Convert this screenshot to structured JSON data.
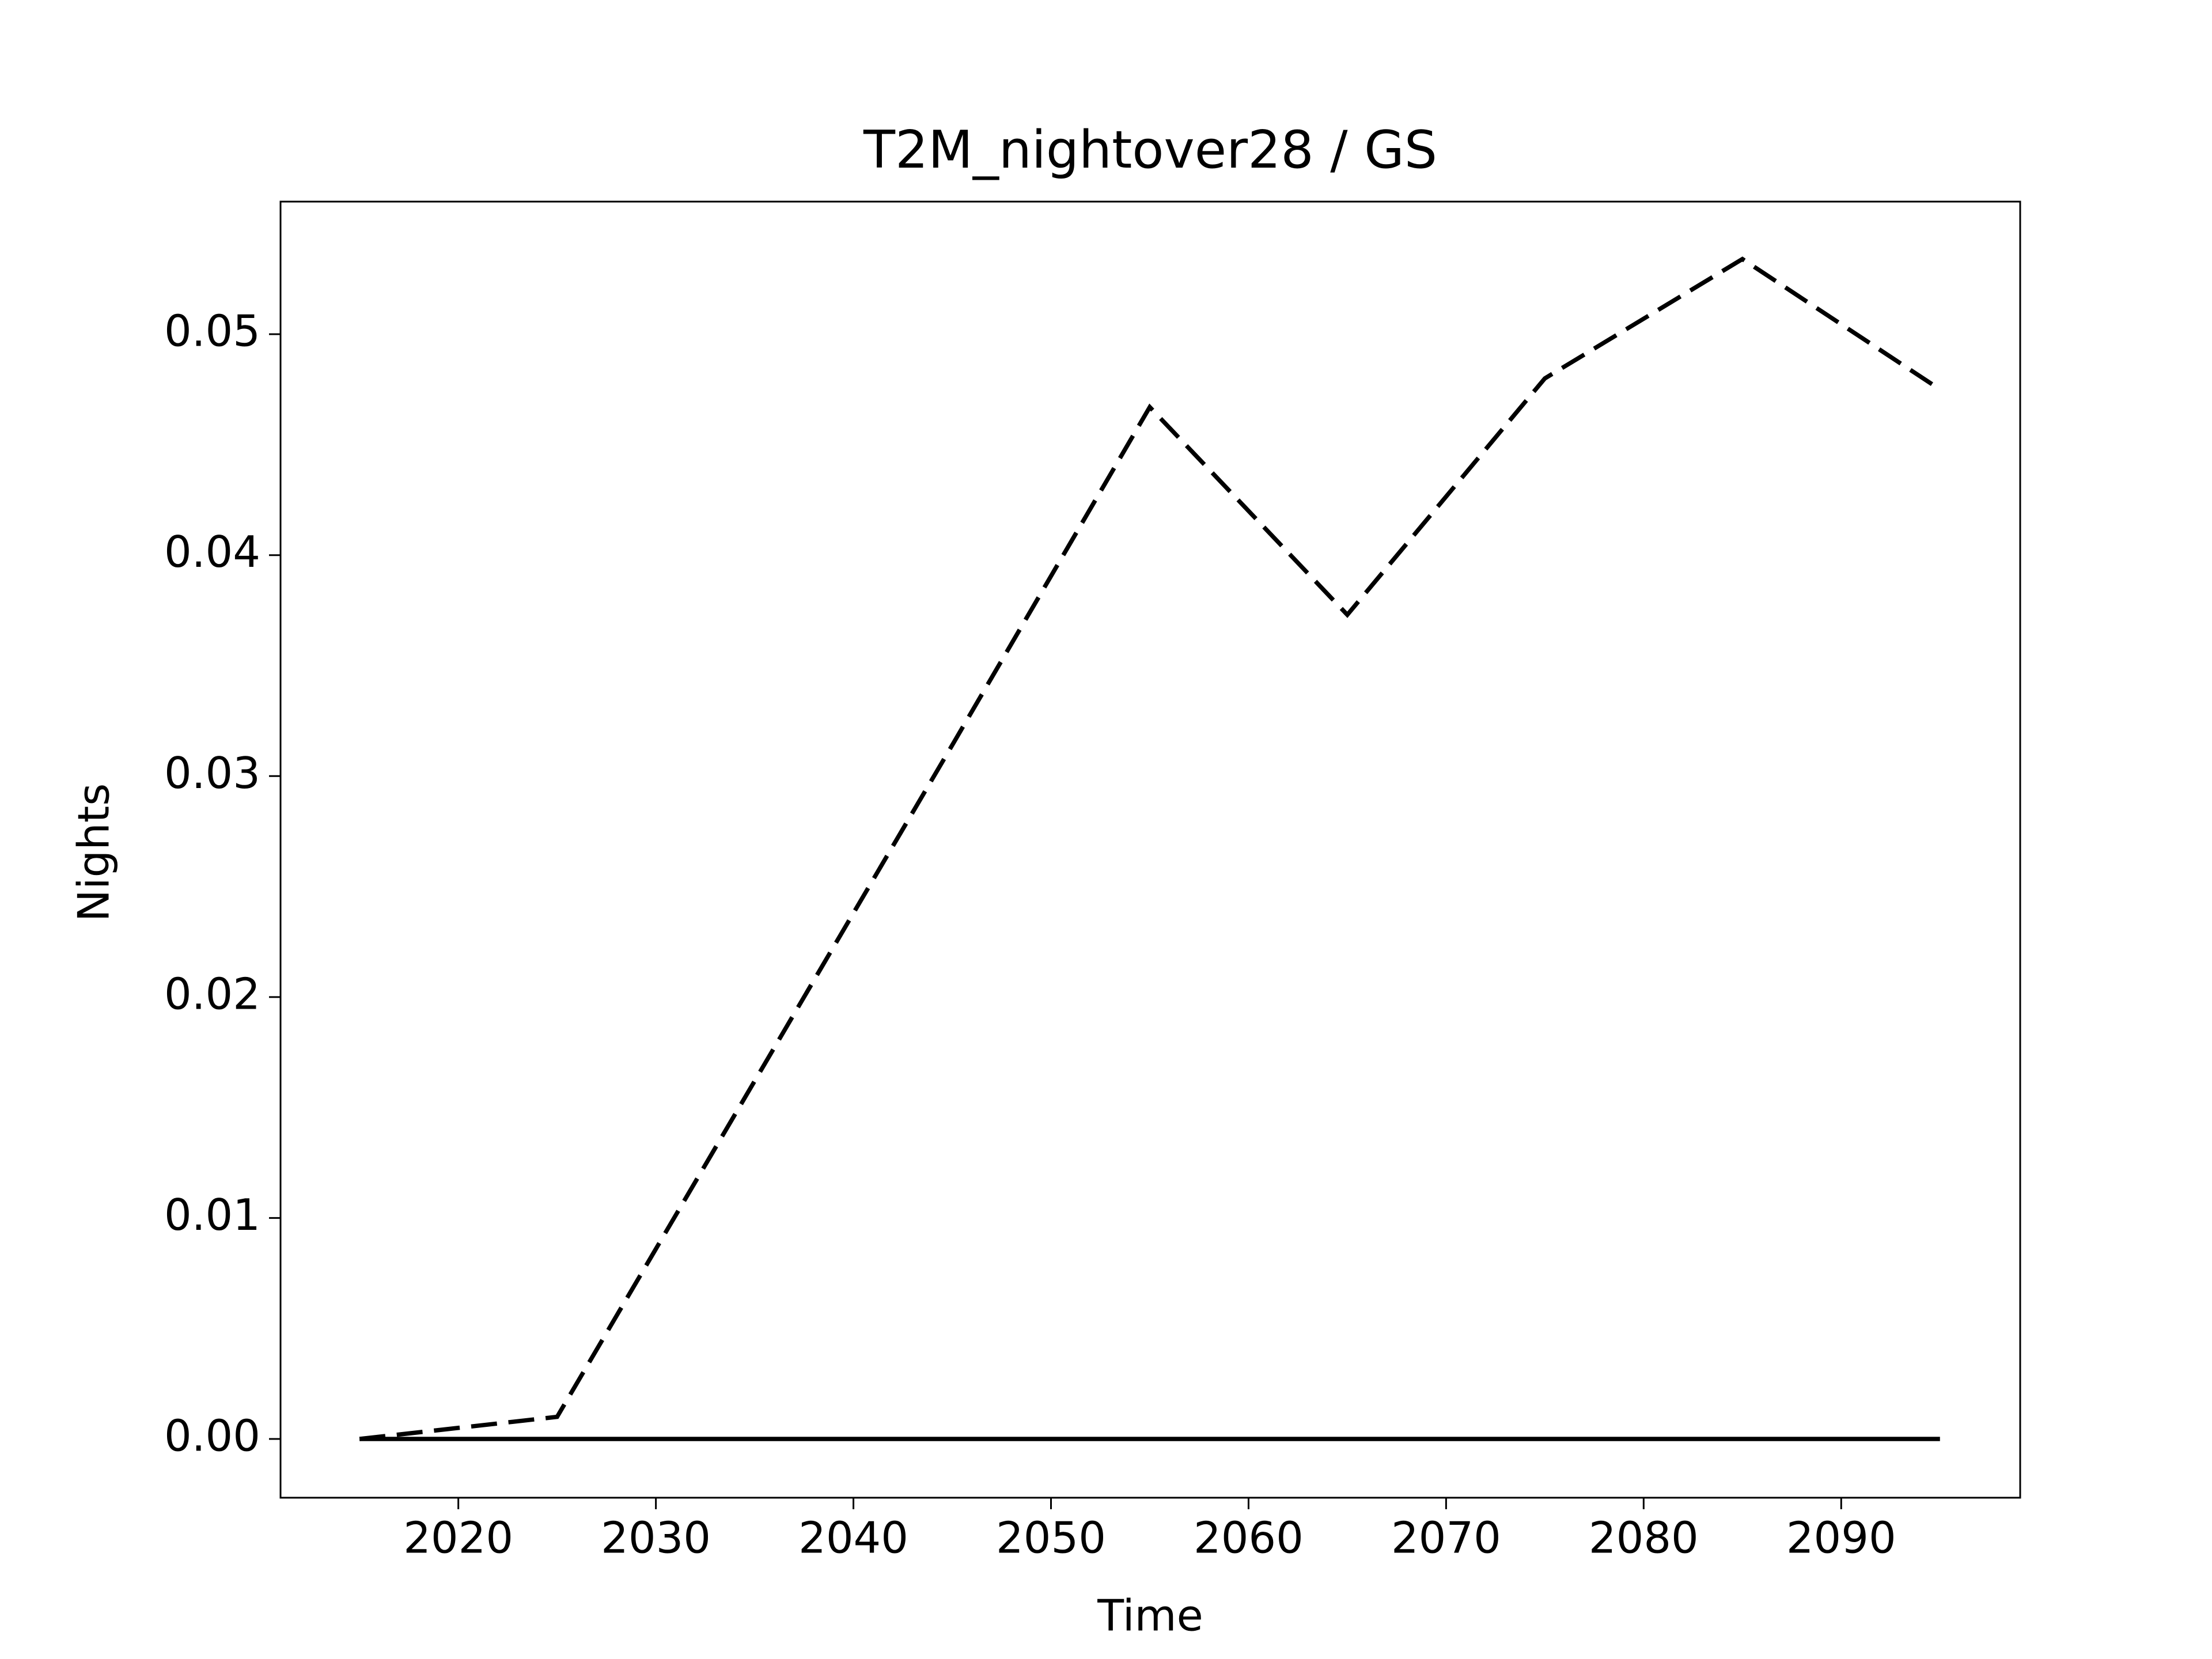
{
  "chart_data": {
    "type": "line",
    "title": "T2M_nightover28 / GS",
    "x_label": "Time",
    "y_label": "Nights",
    "x": [
      2015,
      2025,
      2035,
      2045,
      2055,
      2065,
      2075,
      2085,
      2095
    ],
    "series": [
      {
        "color": "#000000",
        "dash": "dashed",
        "values": [
          0,
          0.001,
          0.0162,
          0.0314,
          0.0467,
          0.0373,
          0.048,
          0.0534,
          0.0475
        ]
      },
      {
        "color": "#000000",
        "dash": "solid",
        "values": [
          0,
          0,
          0,
          0,
          0,
          0,
          0,
          0,
          0
        ]
      }
    ],
    "xlim": [
      2011.0,
      2099.06
    ],
    "xticks": [
      2020,
      2030,
      2040,
      2050,
      2060,
      2070,
      2080,
      2090
    ],
    "ylim": [
      -0.00266,
      0.056
    ],
    "yticks": [
      {
        "value": 0,
        "label": "0.00"
      },
      {
        "value": 0.01,
        "label": "0.01"
      },
      {
        "value": 0.02,
        "label": "0.02"
      },
      {
        "value": 0.03,
        "label": "0.03"
      },
      {
        "value": 0.04,
        "label": "0.04"
      },
      {
        "value": 0.05,
        "label": "0.05"
      }
    ],
    "grid": false
  }
}
